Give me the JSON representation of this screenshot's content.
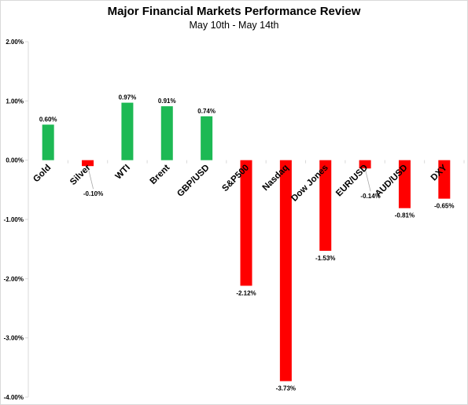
{
  "chart_data": {
    "type": "bar",
    "title": "Major Financial Markets Performance Review",
    "subtitle": "May 10th - May 14th",
    "categories": [
      "Gold",
      "Silver",
      "WTI",
      "Brent",
      "GBP/USD",
      "S&P500",
      "Nasdaq",
      "Dow Jones",
      "EUR/USD",
      "AUD/USD",
      "DXY"
    ],
    "values": [
      0.6,
      -0.1,
      0.97,
      0.91,
      0.74,
      -2.12,
      -3.73,
      -1.53,
      -0.14,
      -0.81,
      -0.65
    ],
    "data_labels": [
      "0.60%",
      "-0.10%",
      "0.97%",
      "0.91%",
      "0.74%",
      "-2.12%",
      "-3.73%",
      "-1.53%",
      "-0.14%",
      "-0.81%",
      "-0.65%"
    ],
    "ylim": [
      -4,
      2
    ],
    "yticks": [
      2,
      1,
      0,
      -1,
      -2,
      -3,
      -4
    ],
    "ytick_labels": [
      "2.00%",
      "1.00%",
      "0.00%",
      "-1.00%",
      "-2.00%",
      "-3.00%",
      "-4.00%"
    ],
    "xlabel": "",
    "ylabel": "",
    "grid": false,
    "legend": "none",
    "colors": {
      "positive": "#1db954",
      "negative": "#ff0000",
      "axis": "#d9d9d9"
    }
  }
}
